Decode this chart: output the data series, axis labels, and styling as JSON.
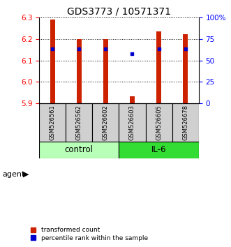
{
  "title": "GDS3773 / 10571371",
  "samples": [
    "GSM526561",
    "GSM526562",
    "GSM526602",
    "GSM526603",
    "GSM526605",
    "GSM526678"
  ],
  "red_values": [
    6.29,
    6.2,
    6.2,
    5.935,
    6.235,
    6.22
  ],
  "blue_values": [
    6.155,
    6.155,
    6.155,
    6.13,
    6.155,
    6.155
  ],
  "ylim": [
    5.9,
    6.3
  ],
  "yticks": [
    5.9,
    6.0,
    6.1,
    6.2,
    6.3
  ],
  "y2ticks_vals": [
    0,
    25,
    50,
    75,
    100
  ],
  "y2ticks_labels": [
    "0",
    "25",
    "50",
    "75",
    "100%"
  ],
  "control_color": "#b8ffb8",
  "il6_color": "#33dd33",
  "bar_color": "#cc2200",
  "dot_color": "#0000cc",
  "title_fontsize": 10,
  "tick_fontsize": 7.5,
  "label_fontsize": 8.5,
  "sample_fontsize": 6,
  "legend_fontsize": 6.5,
  "agent_fontsize": 8
}
